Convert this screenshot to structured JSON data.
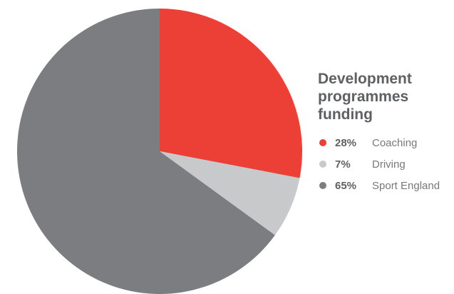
{
  "chart_data": {
    "type": "pie",
    "title_lines": [
      "Development",
      "programmes",
      "funding"
    ],
    "slices": [
      {
        "label": "Coaching",
        "value": 28,
        "value_label": "28%",
        "color": "#ec4036"
      },
      {
        "label": "Driving",
        "value": 7,
        "value_label": "7%",
        "color": "#c8c9cb"
      },
      {
        "label": "Sport England",
        "value": 65,
        "value_label": "65%",
        "color": "#7c7d80"
      }
    ],
    "legend_position": "right"
  }
}
